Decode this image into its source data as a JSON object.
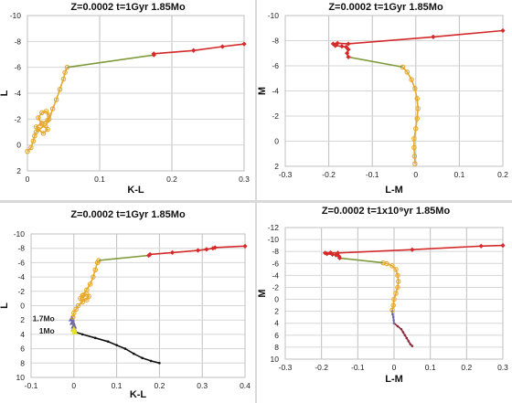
{
  "chart_data": [
    {
      "type": "scatter",
      "title": "Z=0.0002  t=1Gyr  1.85Mo",
      "xlabel": "K-L",
      "ylabel": "L",
      "xlim": [
        0,
        0.3
      ],
      "ylim": [
        -10,
        2
      ],
      "y_inverted": true,
      "xticks": [
        "0",
        "0.1",
        "0.2",
        "0.3"
      ],
      "yticks": [
        "-10",
        "-8",
        "-6",
        "-4",
        "-2",
        "0",
        "2"
      ],
      "series": [
        {
          "color": "#e7a82a",
          "marker": "circle",
          "points": [
            [
              0.0,
              0.5
            ],
            [
              0.005,
              0.2
            ],
            [
              0.008,
              -0.3
            ],
            [
              0.01,
              -0.7
            ],
            [
              0.012,
              -1.0
            ],
            [
              0.015,
              -1.2
            ],
            [
              0.012,
              -1.4
            ],
            [
              0.02,
              -1.7
            ],
            [
              0.028,
              -1.9
            ],
            [
              0.03,
              -2.3
            ],
            [
              0.026,
              -2.6
            ],
            [
              0.02,
              -2.5
            ],
            [
              0.015,
              -2.1
            ],
            [
              0.02,
              -1.6
            ],
            [
              0.028,
              -1.2
            ],
            [
              0.022,
              -0.9
            ],
            [
              0.015,
              -1.2
            ],
            [
              0.025,
              -1.5
            ],
            [
              0.03,
              -2.0
            ],
            [
              0.035,
              -2.8
            ],
            [
              0.04,
              -3.5
            ],
            [
              0.045,
              -4.3
            ],
            [
              0.05,
              -5.1
            ],
            [
              0.052,
              -5.6
            ],
            [
              0.055,
              -6.0
            ]
          ]
        },
        {
          "color": "#7f9a3a",
          "marker": "none",
          "points": [
            [
              0.055,
              -6.0
            ],
            [
              0.175,
              -6.95
            ]
          ]
        },
        {
          "color": "#d42a2a",
          "marker": "diamond",
          "points": [
            [
              0.175,
              -6.95
            ],
            [
              0.175,
              -7.05
            ],
            [
              0.23,
              -7.3
            ],
            [
              0.27,
              -7.6
            ],
            [
              0.3,
              -7.8
            ]
          ]
        }
      ]
    },
    {
      "type": "scatter",
      "title": "Z=0.0002  t=1Gyr  1.85Mo",
      "xlabel": "L-M",
      "ylabel": "M",
      "xlim": [
        -0.3,
        0.2
      ],
      "ylim": [
        -10,
        2
      ],
      "y_inverted": true,
      "xticks": [
        "-0.3",
        "-0.2",
        "-0.1",
        "0",
        "0.1",
        "0.2"
      ],
      "yticks": [
        "-10",
        "-8",
        "-6",
        "-4",
        "-2",
        "0",
        "2"
      ],
      "series": [
        {
          "color": "#e7a82a",
          "marker": "circle",
          "points": [
            [
              -0.002,
              1.8
            ],
            [
              -0.003,
              1.2
            ],
            [
              -0.004,
              0.5
            ],
            [
              -0.004,
              -0.2
            ],
            [
              0.0,
              -1.0
            ],
            [
              0.003,
              -1.8
            ],
            [
              0.005,
              -2.6
            ],
            [
              0.003,
              -3.4
            ],
            [
              -0.002,
              -4.2
            ],
            [
              -0.01,
              -4.9
            ],
            [
              -0.02,
              -5.5
            ],
            [
              -0.03,
              -5.9
            ]
          ]
        },
        {
          "color": "#7f9a3a",
          "marker": "none",
          "points": [
            [
              -0.03,
              -5.9
            ],
            [
              -0.155,
              -6.7
            ]
          ]
        },
        {
          "color": "#d42a2a",
          "marker": "diamond",
          "points": [
            [
              -0.155,
              -6.7
            ],
            [
              -0.158,
              -7.0
            ],
            [
              -0.155,
              -7.3
            ],
            [
              -0.16,
              -7.5
            ],
            [
              -0.17,
              -7.55
            ],
            [
              -0.185,
              -7.6
            ],
            [
              -0.19,
              -7.75
            ],
            [
              -0.18,
              -7.8
            ],
            [
              -0.155,
              -7.75
            ],
            [
              0.04,
              -8.3
            ],
            [
              0.2,
              -8.8
            ]
          ]
        }
      ]
    },
    {
      "type": "scatter",
      "title": "Z=0.0002  t=1Gyr  1.85Mo",
      "xlabel": "K-L",
      "ylabel": "L",
      "xlim": [
        -0.1,
        0.4
      ],
      "ylim": [
        -10,
        10
      ],
      "y_inverted": true,
      "xticks": [
        "-0.1",
        "0",
        "0.1",
        "0.2",
        "0.3",
        "0.4"
      ],
      "yticks": [
        "-10",
        "-8",
        "-6",
        "-4",
        "-2",
        "0",
        "2",
        "4",
        "6",
        "8",
        "10"
      ],
      "annotations": [
        {
          "text": "1.7Mo",
          "x": -0.045,
          "y": 1.8
        },
        {
          "text": "1Mo",
          "x": -0.045,
          "y": 3.5
        }
      ],
      "series": [
        {
          "color": "#111111",
          "marker": "small-circle",
          "points": [
            [
              0.0,
              3.6
            ],
            [
              0.02,
              4.0
            ],
            [
              0.05,
              4.5
            ],
            [
              0.08,
              5.0
            ],
            [
              0.1,
              5.5
            ],
            [
              0.12,
              6.0
            ],
            [
              0.14,
              6.7
            ],
            [
              0.16,
              7.3
            ],
            [
              0.18,
              7.7
            ],
            [
              0.2,
              8.0
            ]
          ]
        },
        {
          "color": "#6f6aa8",
          "marker": "triangle",
          "points": [
            [
              -0.005,
              1.8
            ],
            [
              -0.003,
              2.3
            ],
            [
              0.0,
              2.8
            ],
            [
              0.0,
              3.2
            ]
          ]
        },
        {
          "color": "#e8e020",
          "marker": "triangle",
          "points": [
            [
              0.0,
              3.3
            ],
            [
              0.002,
              3.6
            ]
          ]
        },
        {
          "color": "#e7a82a",
          "marker": "circle",
          "points": [
            [
              -0.002,
              1.6
            ],
            [
              0.0,
              1.0
            ],
            [
              0.005,
              0.5
            ],
            [
              0.01,
              0.0
            ],
            [
              0.02,
              -0.5
            ],
            [
              0.015,
              -1.0
            ],
            [
              0.02,
              -1.4
            ],
            [
              0.03,
              -1.6
            ],
            [
              0.035,
              -1.3
            ],
            [
              0.03,
              -0.8
            ],
            [
              0.02,
              -0.9
            ],
            [
              0.022,
              -1.5
            ],
            [
              0.03,
              -2.2
            ],
            [
              0.038,
              -3.0
            ],
            [
              0.045,
              -4.0
            ],
            [
              0.05,
              -5.0
            ],
            [
              0.055,
              -6.0
            ],
            [
              0.058,
              -6.3
            ]
          ]
        },
        {
          "color": "#7f9a3a",
          "marker": "none",
          "points": [
            [
              0.058,
              -6.3
            ],
            [
              0.175,
              -7.0
            ]
          ]
        },
        {
          "color": "#d42a2a",
          "marker": "diamond",
          "points": [
            [
              0.175,
              -7.0
            ],
            [
              0.178,
              -7.15
            ],
            [
              0.23,
              -7.4
            ],
            [
              0.29,
              -7.7
            ],
            [
              0.31,
              -7.85
            ],
            [
              0.325,
              -8.0
            ],
            [
              0.33,
              -8.1
            ],
            [
              0.4,
              -8.3
            ]
          ]
        }
      ]
    },
    {
      "type": "scatter",
      "title": "Z=0.0002  t=1x10⁹yr  1.85Mo",
      "xlabel": "L-M",
      "ylabel": "M",
      "xlim": [
        -0.3,
        0.3
      ],
      "ylim": [
        -12,
        10
      ],
      "y_inverted": true,
      "xticks": [
        "-0.3",
        "-0.2",
        "-0.1",
        "0",
        "0.1",
        "0.2",
        "0.3"
      ],
      "yticks": [
        "-12",
        "-10",
        "-8",
        "-6",
        "-4",
        "-2",
        "0",
        "2",
        "4",
        "6",
        "8",
        "10"
      ],
      "series": [
        {
          "color": "#8a2a3a",
          "marker": "small-circle",
          "points": [
            [
              0.0,
              4.0
            ],
            [
              0.01,
              4.5
            ],
            [
              0.02,
              5.0
            ],
            [
              0.025,
              5.5
            ],
            [
              0.03,
              6.0
            ],
            [
              0.035,
              6.5
            ],
            [
              0.04,
              7.0
            ],
            [
              0.045,
              7.5
            ],
            [
              0.05,
              7.8
            ]
          ]
        },
        {
          "color": "#6f6aa8",
          "marker": "small-circle",
          "points": [
            [
              -0.005,
              2.0
            ],
            [
              -0.004,
              2.5
            ],
            [
              -0.002,
              3.0
            ],
            [
              -0.001,
              3.5
            ],
            [
              0.0,
              4.0
            ]
          ]
        },
        {
          "color": "#e7a82a",
          "marker": "circle",
          "points": [
            [
              -0.005,
              1.8
            ],
            [
              -0.002,
              1.0
            ],
            [
              0.0,
              0.0
            ],
            [
              0.005,
              -1.0
            ],
            [
              0.01,
              -2.0
            ],
            [
              0.012,
              -3.0
            ],
            [
              0.01,
              -4.0
            ],
            [
              0.005,
              -5.0
            ],
            [
              -0.005,
              -5.6
            ],
            [
              -0.02,
              -5.95
            ],
            [
              -0.03,
              -6.1
            ]
          ]
        },
        {
          "color": "#7f9a3a",
          "marker": "none",
          "points": [
            [
              -0.03,
              -6.1
            ],
            [
              -0.15,
              -6.9
            ]
          ]
        },
        {
          "color": "#d42a2a",
          "marker": "diamond",
          "points": [
            [
              -0.15,
              -6.9
            ],
            [
              -0.152,
              -7.2
            ],
            [
              -0.16,
              -7.4
            ],
            [
              -0.17,
              -7.5
            ],
            [
              -0.185,
              -7.6
            ],
            [
              -0.19,
              -7.75
            ],
            [
              -0.175,
              -7.8
            ],
            [
              -0.155,
              -7.75
            ],
            [
              0.05,
              -8.3
            ],
            [
              0.24,
              -8.9
            ],
            [
              0.3,
              -9.0
            ]
          ]
        }
      ]
    }
  ]
}
